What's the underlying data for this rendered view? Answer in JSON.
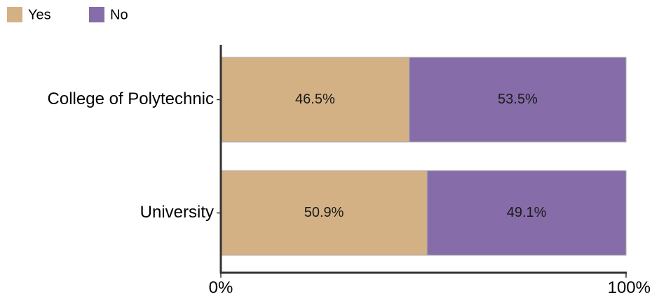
{
  "chart_data": {
    "type": "bar",
    "orientation": "horizontal",
    "stacked": true,
    "normalized": true,
    "title": "",
    "categories": [
      "College of Polytechnic",
      "University"
    ],
    "series": [
      {
        "name": "Yes",
        "color": "#d4b184",
        "values": [
          46.5,
          50.9
        ]
      },
      {
        "name": "No",
        "color": "#866ca8",
        "values": [
          53.5,
          49.1
        ]
      }
    ],
    "value_labels": [
      [
        "46.5%",
        "50.9%"
      ],
      [
        "53.5%",
        "49.1%"
      ]
    ],
    "xlim": [
      0,
      100
    ],
    "x_ticks": [
      0,
      100
    ],
    "x_tick_labels": [
      "0%",
      "100%"
    ],
    "xlabel": "",
    "ylabel": "",
    "grid": false,
    "legend_position": "top-left",
    "colors": {
      "axis": "#333333",
      "bar_edge": "#aaaaaa"
    }
  }
}
